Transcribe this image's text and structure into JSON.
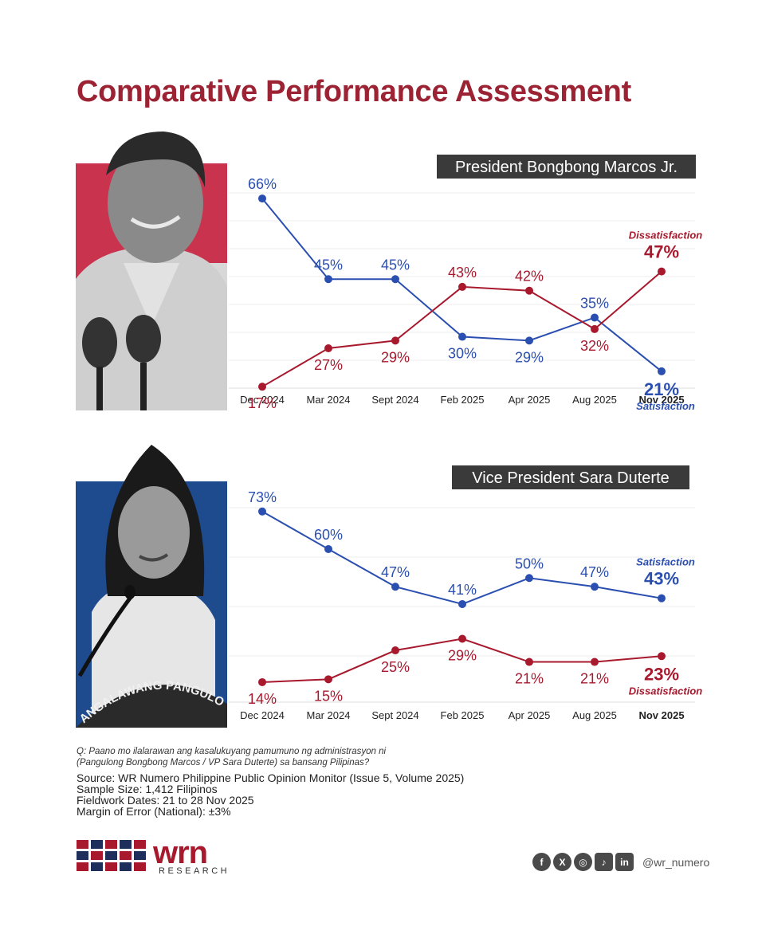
{
  "title": "Comparative Performance Assessment",
  "colors": {
    "title": "#9b2333",
    "satisfaction": "#2b4fb0",
    "dissatisfaction": "#a8192e",
    "label_box": "#3a3a3a",
    "marcos_photo_bg": "#c9334e",
    "duterte_photo_bg": "#1e4a8e"
  },
  "chart_data": [
    {
      "type": "line",
      "panel_title": "President Bongbong Marcos Jr.",
      "categories": [
        "Dec 2024",
        "Mar 2024",
        "Sept 2024",
        "Feb 2025",
        "Apr 2025",
        "Aug 2025",
        "Nov 2025"
      ],
      "series": [
        {
          "name": "Satisfaction",
          "color": "#2b4fb0",
          "values": [
            66,
            45,
            45,
            30,
            29,
            35,
            21
          ],
          "labels": [
            "66%",
            "45%",
            "45%",
            "30%",
            "29%",
            "35%",
            "21%"
          ]
        },
        {
          "name": "Dissatisfaction",
          "color": "#a8192e",
          "values": [
            17,
            27,
            29,
            43,
            42,
            32,
            47
          ],
          "labels": [
            "17%",
            "27%",
            "29%",
            "43%",
            "42%",
            "32%",
            "47%"
          ]
        }
      ],
      "grid": true,
      "legend": "inline-end-labels"
    },
    {
      "type": "line",
      "panel_title": "Vice President Sara Duterte",
      "categories": [
        "Dec 2024",
        "Mar 2024",
        "Sept 2024",
        "Feb 2025",
        "Apr 2025",
        "Aug 2025",
        "Nov 2025"
      ],
      "series": [
        {
          "name": "Satisfaction",
          "color": "#2b4fb0",
          "values": [
            73,
            60,
            47,
            41,
            50,
            47,
            43
          ],
          "labels": [
            "73%",
            "60%",
            "47%",
            "41%",
            "50%",
            "47%",
            "43%"
          ]
        },
        {
          "name": "Dissatisfaction",
          "color": "#a8192e",
          "values": [
            14,
            15,
            25,
            29,
            21,
            21,
            23
          ],
          "labels": [
            "14%",
            "15%",
            "25%",
            "29%",
            "21%",
            "21%",
            "23%"
          ]
        }
      ],
      "grid": true,
      "legend": "inline-end-labels"
    }
  ],
  "photo_text": "ANGALAWANG PANGULO",
  "question": [
    "Q: Paano mo ilalarawan ang kasalukuyang pamumuno ng administrasyon ni",
    "(Pangulong Bongbong Marcos / VP Sara Duterte) sa bansang Pilipinas?"
  ],
  "source": [
    "Source: WR Numero Philippine Public Opinion Monitor (Issue 5, Volume 2025)",
    "Sample Size: 1,412 Filipinos",
    "Fieldwork Dates: 21 to 28 Nov 2025",
    "Margin of Error (National): ±3%"
  ],
  "logo": {
    "wordmark": "wrn",
    "subtitle": "RESEARCH"
  },
  "social": {
    "icons": [
      {
        "name": "facebook-icon",
        "glyph": "f"
      },
      {
        "name": "x-icon",
        "glyph": "X"
      },
      {
        "name": "instagram-icon",
        "glyph": "◎"
      },
      {
        "name": "tiktok-icon",
        "glyph": "♪"
      },
      {
        "name": "linkedin-icon",
        "glyph": "in"
      }
    ],
    "handle": "@wr_numero"
  }
}
